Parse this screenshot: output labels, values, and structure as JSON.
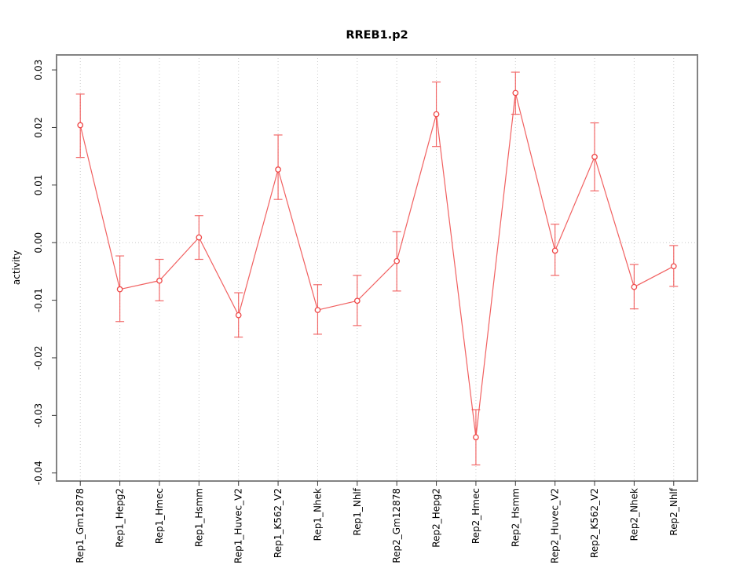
{
  "chart_data": {
    "type": "line",
    "title": "RREB1.p2",
    "ylabel": "activity",
    "xlabel": "",
    "legend": "none",
    "grid": "vertical dotted gridline at each category; dotted horizontal line at y=0",
    "categories": [
      "Rep1_Gm12878",
      "Rep1_Hepg2",
      "Rep1_Hmec",
      "Rep1_Hsmm",
      "Rep1_Huvec_V2",
      "Rep1_K562_V2",
      "Rep1_Nhek",
      "Rep1_Nhlf",
      "Rep2_Gm12878",
      "Rep2_Hepg2",
      "Rep2_Hmec",
      "Rep2_Hsmm",
      "Rep2_Huvec_V2",
      "Rep2_K562_V2",
      "Rep2_Nhek",
      "Rep2_Nhlf"
    ],
    "series": [
      {
        "name": "activity",
        "marker": "open-circle",
        "values": [
          0.0204,
          -0.0081,
          -0.0066,
          0.0009,
          -0.0126,
          0.0127,
          -0.0117,
          -0.0101,
          -0.0032,
          0.0223,
          -0.0338,
          0.026,
          -0.0014,
          0.0149,
          -0.0077,
          -0.0041
        ],
        "ci_upper": [
          0.0258,
          -0.0023,
          -0.0029,
          0.0047,
          -0.0087,
          0.0187,
          -0.0073,
          -0.0057,
          0.0019,
          0.0279,
          -0.029,
          0.0296,
          0.0032,
          0.0208,
          -0.0038,
          -0.0005
        ],
        "ci_lower": [
          0.0148,
          -0.0137,
          -0.0101,
          -0.0029,
          -0.0164,
          0.0075,
          -0.0159,
          -0.0144,
          -0.0084,
          0.0167,
          -0.0386,
          0.0223,
          -0.0057,
          0.009,
          -0.0115,
          -0.0076
        ]
      }
    ],
    "ylim": [
      -0.0414,
      0.0326
    ],
    "ytick_values": [
      -0.04,
      -0.03,
      -0.02,
      -0.01,
      0.0,
      0.01,
      0.02,
      0.03
    ],
    "ytick_labels": [
      "-0.04",
      "-0.03",
      "-0.02",
      "-0.01",
      "0.00",
      "0.01",
      "0.02",
      "0.03"
    ],
    "colors": {
      "series": "#f05050",
      "marker_stroke": "#ee4747",
      "grid": "#c9c9c9",
      "frame": "#838383",
      "tick": "#3a3a3a",
      "text": "#000000",
      "background": "#ffffff"
    }
  }
}
